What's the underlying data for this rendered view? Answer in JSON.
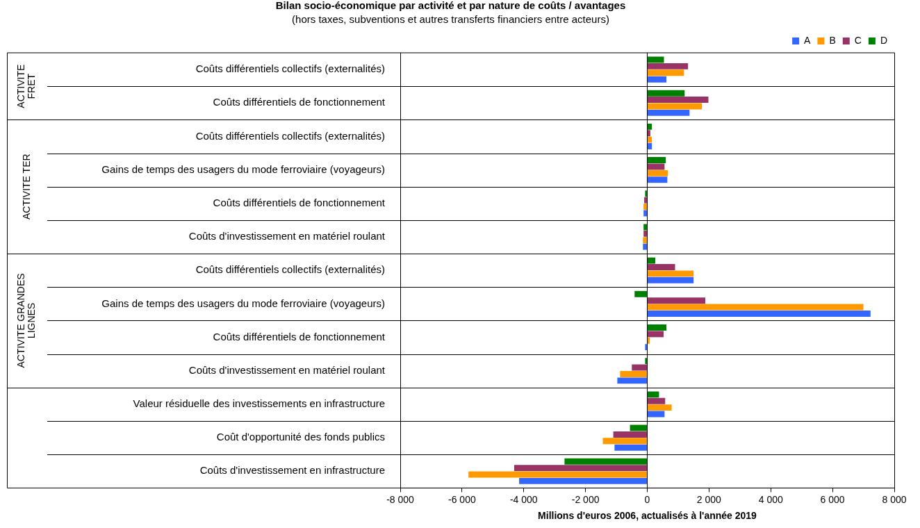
{
  "chart_data": {
    "type": "bar",
    "orientation": "horizontal",
    "title": "Bilan socio-économique par activité et par nature de coûts / avantages",
    "subtitle": "(hors taxes, subventions et autres transferts financiers entre acteurs)",
    "xlabel": "Millions d'euros 2006, actualisés à l'année 2019",
    "categories": [
      "Coûts différentiels collectifs (externalités)",
      "Coûts différentiels de fonctionnement",
      "Coûts différentiels collectifs (externalités)",
      "Gains de temps des usagers du mode ferroviaire (voyageurs)",
      "Coûts différentiels de fonctionnement",
      "Coûts d'investissement en matériel roulant",
      "Coûts différentiels collectifs (externalités)",
      "Gains de temps des usagers du mode ferroviaire (voyageurs)",
      "Coûts différentiels de fonctionnement",
      "Coûts d'investissement en matériel roulant",
      "Valeur résiduelle des investissements en infrastructure",
      "Coût d'opportunité des fonds publics",
      "Coûts d'investissement en infrastructure"
    ],
    "series": [
      {
        "name": "A",
        "color": "#3366ff",
        "values": [
          620,
          1370,
          150,
          650,
          -120,
          -140,
          1500,
          7230,
          -70,
          -970,
          560,
          -1060,
          -4150
        ]
      },
      {
        "name": "B",
        "color": "#ff9900",
        "values": [
          1190,
          1770,
          150,
          670,
          -120,
          -140,
          1500,
          7000,
          80,
          -880,
          790,
          -1440,
          -5790
        ]
      },
      {
        "name": "C",
        "color": "#993366",
        "values": [
          1320,
          1980,
          100,
          560,
          -100,
          -120,
          900,
          1880,
          530,
          -500,
          580,
          -1100,
          -4310
        ]
      },
      {
        "name": "D",
        "color": "#008000",
        "values": [
          540,
          1210,
          150,
          600,
          -70,
          -120,
          260,
          -410,
          620,
          -70,
          380,
          -560,
          -2680
        ]
      }
    ],
    "xlim": [
      -8000,
      8000
    ],
    "xticks": [
      {
        "value": -8000,
        "label": "-8 000"
      },
      {
        "value": -6000,
        "label": "-6 000"
      },
      {
        "value": -4000,
        "label": "-4 000"
      },
      {
        "value": -2000,
        "label": "-2 000"
      },
      0,
      {
        "value": 2000,
        "label": "2 000"
      },
      {
        "value": 4000,
        "label": "4 000"
      },
      {
        "value": 6000,
        "label": "6 000"
      },
      {
        "value": 8000,
        "label": "8 000"
      }
    ],
    "annotations": [
      "ACTIVITE FRET",
      "ACTIVITE TER",
      "ACTIVITE GRANDES LIGNES"
    ],
    "legend": "top right"
  }
}
